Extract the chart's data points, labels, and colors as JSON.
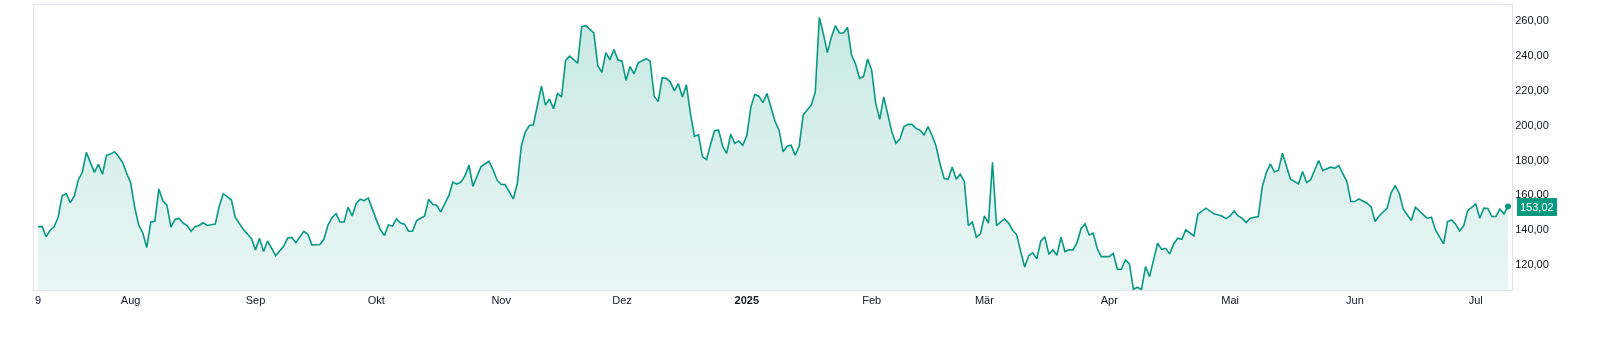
{
  "chart_data": {
    "type": "area",
    "x": [
      "2024-07-09",
      "2024-07-10",
      "2024-07-11",
      "2024-07-12",
      "2024-07-13",
      "2024-07-14",
      "2024-07-15",
      "2024-07-16",
      "2024-07-17",
      "2024-07-18",
      "2024-07-19",
      "2024-07-20",
      "2024-07-21",
      "2024-07-23",
      "2024-07-24",
      "2024-07-25",
      "2024-07-26",
      "2024-07-27",
      "2024-07-28",
      "2024-07-29",
      "2024-07-30",
      "2024-07-31",
      "2024-08-01",
      "2024-08-02",
      "2024-08-03",
      "2024-08-04",
      "2024-08-05",
      "2024-08-06",
      "2024-08-07",
      "2024-08-08",
      "2024-08-09",
      "2024-08-10",
      "2024-08-11",
      "2024-08-12",
      "2024-08-13",
      "2024-08-14",
      "2024-08-15",
      "2024-08-16",
      "2024-08-17",
      "2024-08-18",
      "2024-08-19",
      "2024-08-20",
      "2024-08-22",
      "2024-08-23",
      "2024-08-24",
      "2024-08-26",
      "2024-08-27",
      "2024-08-29",
      "2024-08-31",
      "2024-09-01",
      "2024-09-02",
      "2024-09-03",
      "2024-09-04",
      "2024-09-06",
      "2024-09-08",
      "2024-09-09",
      "2024-09-10",
      "2024-09-11",
      "2024-09-13",
      "2024-09-14",
      "2024-09-15",
      "2024-09-17",
      "2024-09-18",
      "2024-09-19",
      "2024-09-20",
      "2024-09-21",
      "2024-09-22",
      "2024-09-23",
      "2024-09-24",
      "2024-09-25",
      "2024-09-26",
      "2024-09-27",
      "2024-09-28",
      "2024-09-29",
      "2024-10-01",
      "2024-10-02",
      "2024-10-03",
      "2024-10-04",
      "2024-10-05",
      "2024-10-06",
      "2024-10-07",
      "2024-10-08",
      "2024-10-09",
      "2024-10-10",
      "2024-10-11",
      "2024-10-13",
      "2024-10-14",
      "2024-10-15",
      "2024-10-16",
      "2024-10-17",
      "2024-10-19",
      "2024-10-20",
      "2024-10-21",
      "2024-10-22",
      "2024-10-23",
      "2024-10-24",
      "2024-10-25",
      "2024-10-27",
      "2024-10-29",
      "2024-10-30",
      "2024-10-31",
      "2024-11-01",
      "2024-11-02",
      "2024-11-04",
      "2024-11-05",
      "2024-11-06",
      "2024-11-07",
      "2024-11-08",
      "2024-11-09",
      "2024-11-11",
      "2024-11-12",
      "2024-11-13",
      "2024-11-14",
      "2024-11-15",
      "2024-11-16",
      "2024-11-17",
      "2024-11-18",
      "2024-11-20",
      "2024-11-21",
      "2024-11-22",
      "2024-11-24",
      "2024-11-25",
      "2024-11-26",
      "2024-11-27",
      "2024-11-28",
      "2024-11-29",
      "2024-11-30",
      "2024-12-01",
      "2024-12-02",
      "2024-12-03",
      "2024-12-04",
      "2024-12-05",
      "2024-12-07",
      "2024-12-08",
      "2024-12-09",
      "2024-12-10",
      "2024-12-11",
      "2024-12-12",
      "2024-12-13",
      "2024-12-14",
      "2024-12-15",
      "2024-12-16",
      "2024-12-17",
      "2024-12-18",
      "2024-12-19",
      "2024-12-20",
      "2024-12-21",
      "2024-12-22",
      "2024-12-23",
      "2024-12-24",
      "2024-12-25",
      "2024-12-26",
      "2024-12-27",
      "2024-12-28",
      "2024-12-29",
      "2024-12-30",
      "2024-12-31",
      "2025-01-01",
      "2025-01-02",
      "2025-01-03",
      "2025-01-04",
      "2025-01-05",
      "2025-01-06",
      "2025-01-08",
      "2025-01-09",
      "2025-01-10",
      "2025-01-11",
      "2025-01-12",
      "2025-01-13",
      "2025-01-14",
      "2025-01-15",
      "2025-01-17",
      "2025-01-18",
      "2025-01-19",
      "2025-01-20",
      "2025-01-21",
      "2025-01-22",
      "2025-01-23",
      "2025-01-24",
      "2025-01-25",
      "2025-01-26",
      "2025-01-27",
      "2025-01-28",
      "2025-01-29",
      "2025-01-30",
      "2025-01-31",
      "2025-02-01",
      "2025-02-02",
      "2025-02-03",
      "2025-02-04",
      "2025-02-06",
      "2025-02-07",
      "2025-02-08",
      "2025-02-09",
      "2025-02-10",
      "2025-02-11",
      "2025-02-12",
      "2025-02-13",
      "2025-02-14",
      "2025-02-15",
      "2025-02-16",
      "2025-02-17",
      "2025-02-18",
      "2025-02-19",
      "2025-02-20",
      "2025-02-21",
      "2025-02-22",
      "2025-02-23",
      "2025-02-24",
      "2025-02-25",
      "2025-02-26",
      "2025-02-27",
      "2025-02-28",
      "2025-03-01",
      "2025-03-02",
      "2025-03-03",
      "2025-03-04",
      "2025-03-06",
      "2025-03-07",
      "2025-03-08",
      "2025-03-09",
      "2025-03-10",
      "2025-03-11",
      "2025-03-12",
      "2025-03-13",
      "2025-03-14",
      "2025-03-15",
      "2025-03-16",
      "2025-03-17",
      "2025-03-18",
      "2025-03-19",
      "2025-03-20",
      "2025-03-21",
      "2025-03-22",
      "2025-03-23",
      "2025-03-24",
      "2025-03-25",
      "2025-03-26",
      "2025-03-27",
      "2025-03-28",
      "2025-03-29",
      "2025-03-30",
      "2025-04-01",
      "2025-04-02",
      "2025-04-03",
      "2025-04-04",
      "2025-04-05",
      "2025-04-06",
      "2025-04-07",
      "2025-04-08",
      "2025-04-09",
      "2025-04-10",
      "2025-04-11",
      "2025-04-13",
      "2025-04-14",
      "2025-04-15",
      "2025-04-16",
      "2025-04-17",
      "2025-04-18",
      "2025-04-19",
      "2025-04-20",
      "2025-04-22",
      "2025-04-23",
      "2025-04-25",
      "2025-04-27",
      "2025-04-29",
      "2025-04-30",
      "2025-05-01",
      "2025-05-02",
      "2025-05-03",
      "2025-05-04",
      "2025-05-05",
      "2025-05-06",
      "2025-05-08",
      "2025-05-09",
      "2025-05-10",
      "2025-05-11",
      "2025-05-12",
      "2025-05-13",
      "2025-05-14",
      "2025-05-16",
      "2025-05-18",
      "2025-05-19",
      "2025-05-20",
      "2025-05-21",
      "2025-05-23",
      "2025-05-24",
      "2025-05-26",
      "2025-05-27",
      "2025-05-28",
      "2025-05-30",
      "2025-05-31",
      "2025-06-01",
      "2025-06-02",
      "2025-06-04",
      "2025-06-05",
      "2025-06-06",
      "2025-06-07",
      "2025-06-09",
      "2025-06-10",
      "2025-06-11",
      "2025-06-12",
      "2025-06-13",
      "2025-06-15",
      "2025-06-16",
      "2025-06-18",
      "2025-06-19",
      "2025-06-20",
      "2025-06-21",
      "2025-06-23",
      "2025-06-24",
      "2025-06-25",
      "2025-06-26",
      "2025-06-27",
      "2025-06-28",
      "2025-06-29",
      "2025-07-01",
      "2025-07-02",
      "2025-07-03",
      "2025-07-04",
      "2025-07-05",
      "2025-07-06",
      "2025-07-07",
      "2025-07-08",
      "2025-07-09"
    ],
    "series": [
      {
        "color": "#089981",
        "values": [
          141.4,
          141.6,
          135.6,
          139.4,
          141.4,
          147,
          159.3,
          160.4,
          155.3,
          159,
          168.3,
          172.7,
          184.2,
          172.7,
          177.4,
          171.6,
          182.5,
          183.2,
          184.6,
          181.9,
          178.4,
          172.2,
          166.7,
          152.7,
          142.4,
          137.9,
          129.5,
          144.1,
          144.5,
          163.1,
          156.3,
          153.8,
          141.2,
          145.6,
          146.2,
          143.6,
          142.1,
          138.8,
          141.4,
          142.1,
          143.7,
          142.1,
          142.9,
          153.2,
          160.4,
          156.9,
          146.6,
          139.8,
          134.7,
          128.1,
          134.7,
          127.1,
          133.2,
          124.8,
          130.1,
          134.9,
          135.3,
          132.2,
          138.8,
          137.1,
          131,
          131.2,
          134.3,
          142.4,
          146.6,
          149,
          144.1,
          144.1,
          152.7,
          147.6,
          154.8,
          157.2,
          156.4,
          158,
          145.5,
          139.8,
          136.3,
          142.4,
          141.8,
          145.9,
          143.5,
          142.9,
          138.8,
          138.8,
          144.9,
          147.6,
          157.2,
          154.3,
          153.7,
          150,
          159.3,
          167.1,
          165.9,
          167.1,
          170.6,
          176.8,
          164.7,
          176,
          179.1,
          174.1,
          168.2,
          165.7,
          165.7,
          157.4,
          166.1,
          187.7,
          196,
          199.7,
          200.1,
          222.3,
          211.4,
          214.9,
          209.3,
          218.1,
          216.1,
          237.1,
          239.6,
          235.5,
          256.5,
          257.1,
          252.9,
          234,
          230.3,
          241.6,
          237.5,
          243.3,
          237.5,
          236.7,
          225.6,
          233.6,
          229.3,
          235.7,
          238.1,
          236.7,
          216.5,
          213.4,
          227.2,
          226.8,
          224.8,
          219.6,
          223.7,
          216.1,
          223.1,
          206.3,
          193.5,
          194.3,
          181.6,
          180.1,
          188.8,
          196.8,
          197,
          187.7,
          183.6,
          194.7,
          189.4,
          190.8,
          188.3,
          193.9,
          210.4,
          217.5,
          216.5,
          212.8,
          218.1,
          202.1,
          197,
          184.6,
          187.7,
          188.3,
          182.6,
          187.7,
          205.8,
          211.4,
          219,
          261.8,
          252.5,
          241.6,
          250.5,
          257.1,
          252.9,
          252.9,
          256.2,
          240.2,
          235.1,
          226.8,
          227.9,
          237.9,
          231.4,
          212.5,
          203.2,
          216.1,
          196,
          189.4,
          191.8,
          199,
          200.3,
          200.3,
          198,
          197,
          194.3,
          199,
          193.9,
          187.7,
          177.4,
          169.2,
          168.8,
          175.8,
          168.8,
          171.6,
          167.5,
          142.1,
          144.1,
          135.3,
          137.3,
          147.6,
          143.5,
          178.5,
          142.1,
          146,
          143.5,
          139.4,
          136.9,
          127.1,
          118.2,
          124.8,
          126.4,
          122.9,
          133.2,
          135.6,
          125.6,
          128.1,
          125,
          135.3,
          127.1,
          128.1,
          128.1,
          132.2,
          140.4,
          143.1,
          136.7,
          137.7,
          129,
          124.2,
          124.2,
          126.1,
          116.9,
          116.9,
          122.3,
          120,
          105.4,
          106.6,
          105.2,
          118.5,
          112.7,
          131.9,
          128.4,
          129,
          125.8,
          131.5,
          134.8,
          134.2,
          139.6,
          136.1,
          148.6,
          152.1,
          148.8,
          147.6,
          146.1,
          147.6,
          150.5,
          147.6,
          146.3,
          143.8,
          146.3,
          147.3,
          164.5,
          172.6,
          177.6,
          173,
          173.8,
          183.7,
          168.8,
          166.1,
          173.2,
          166.9,
          168.4,
          179.5,
          173.8,
          175.7,
          175.1,
          176.6,
          167.4,
          155.9,
          155.9,
          157.4,
          154.9,
          153,
          144.4,
          147.6,
          152.1,
          161.1,
          164.9,
          160.7,
          151.5,
          145,
          152.6,
          148.2,
          146.3,
          146.9,
          139.6,
          131.5,
          144.4,
          145.3,
          142.8,
          139,
          141.9,
          150.7,
          154.6,
          146.3,
          152.1,
          151.9,
          147.3,
          147.3,
          151.5,
          148.8,
          153
        ]
      }
    ],
    "xlim": [
      "2024-07-08",
      "2025-07-10"
    ],
    "xticks": [
      {
        "value": "2024-07-09",
        "label": "9"
      },
      {
        "value": "2024-08-01",
        "label": "Aug"
      },
      {
        "value": "2024-09-01",
        "label": "Sep"
      },
      {
        "value": "2024-10-01",
        "label": "Okt"
      },
      {
        "value": "2024-11-01",
        "label": "Nov"
      },
      {
        "value": "2024-12-01",
        "label": "Dez"
      },
      {
        "value": "2025-01-01",
        "label": "2025"
      },
      {
        "value": "2025-02-01",
        "label": "Feb"
      },
      {
        "value": "2025-03-01",
        "label": "Mär"
      },
      {
        "value": "2025-04-01",
        "label": "Apr"
      },
      {
        "value": "2025-05-01",
        "label": "Mai"
      },
      {
        "value": "2025-06-01",
        "label": "Jun"
      },
      {
        "value": "2025-07-01",
        "label": "Jul"
      }
    ],
    "ylim": [
      105,
      269
    ],
    "yticks": [
      {
        "value": 120,
        "label": "120,00"
      },
      {
        "value": 140,
        "label": "140,00"
      },
      {
        "value": 160,
        "label": "160,00"
      },
      {
        "value": 180,
        "label": "180,00"
      },
      {
        "value": 200,
        "label": "200,00"
      },
      {
        "value": 220,
        "label": "220,00"
      },
      {
        "value": 240,
        "label": "240,00"
      },
      {
        "value": 260,
        "label": "260,00"
      }
    ],
    "annotations": [
      {
        "text": "153,02",
        "x": "2025-07-09",
        "y": 153.02
      }
    ]
  }
}
